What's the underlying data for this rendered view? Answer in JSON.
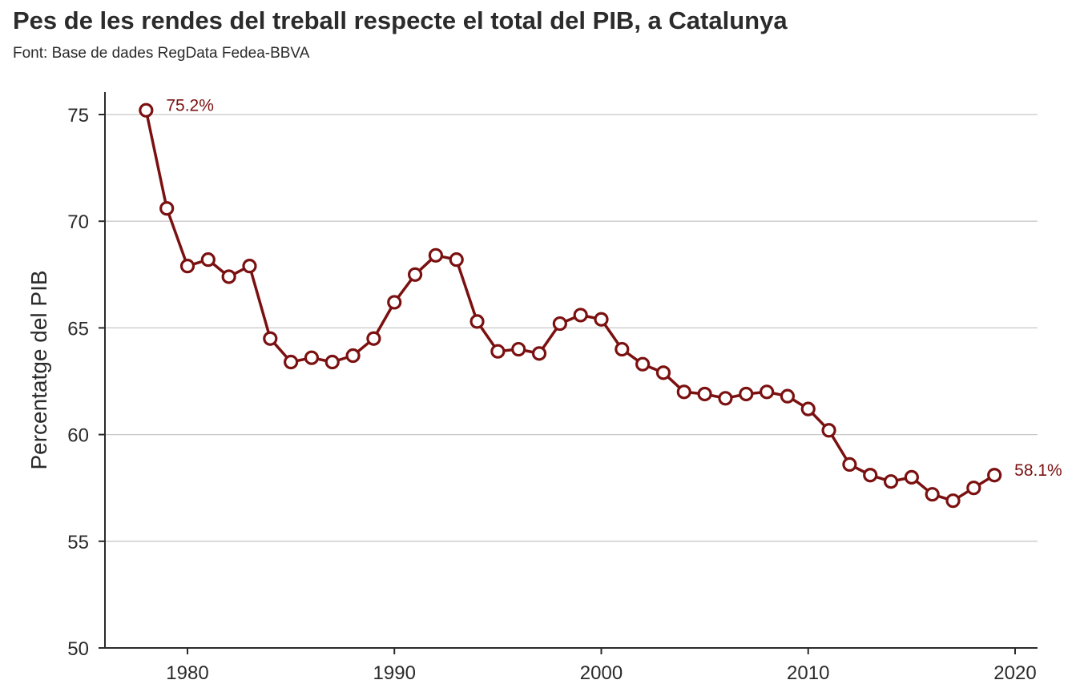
{
  "header": {
    "title": "Pes de les rendes del treball respecte el total del PIB, a Catalunya",
    "subtitle": "Font: Base de dades RegData Fedea-BBVA"
  },
  "chart_data": {
    "type": "line",
    "title": "Pes de les rendes del treball respecte el total del PIB, a Catalunya",
    "subtitle": "Font: Base de dades RegData Fedea-BBVA",
    "xlabel": "",
    "ylabel": "Percentatge del PIB",
    "xlim": [
      1976,
      2021
    ],
    "ylim": [
      50,
      76
    ],
    "xticks": [
      1980,
      1990,
      2000,
      2010,
      2020
    ],
    "yticks": [
      50,
      55,
      60,
      65,
      70,
      75
    ],
    "grid": "horizontal",
    "color": "#7b1010",
    "series": [
      {
        "x": [
          1978,
          1979,
          1980,
          1981,
          1982,
          1983,
          1984,
          1985,
          1986,
          1987,
          1988,
          1989,
          1990,
          1991,
          1992,
          1993,
          1994,
          1995,
          1996,
          1997,
          1998,
          1999,
          2000,
          2001,
          2002,
          2003,
          2004,
          2005,
          2006,
          2007,
          2008,
          2009,
          2010,
          2011,
          2012,
          2013,
          2014,
          2015,
          2016,
          2017,
          2018,
          2019
        ],
        "values": [
          75.2,
          70.6,
          67.9,
          68.2,
          67.4,
          67.9,
          64.5,
          63.4,
          63.6,
          63.4,
          63.7,
          64.5,
          66.2,
          67.5,
          68.4,
          68.2,
          65.3,
          63.9,
          64.0,
          63.8,
          65.2,
          65.6,
          65.4,
          64.0,
          63.3,
          62.9,
          62.0,
          61.9,
          61.7,
          61.9,
          62.0,
          61.8,
          61.2,
          60.2,
          58.6,
          58.1,
          57.8,
          58.0,
          57.2,
          56.9,
          57.5,
          58.1
        ]
      }
    ],
    "annotations": [
      {
        "x": 1978,
        "y": 75.2,
        "text": "75.2%"
      },
      {
        "x": 2019,
        "y": 58.1,
        "text": "58.1%"
      }
    ]
  }
}
